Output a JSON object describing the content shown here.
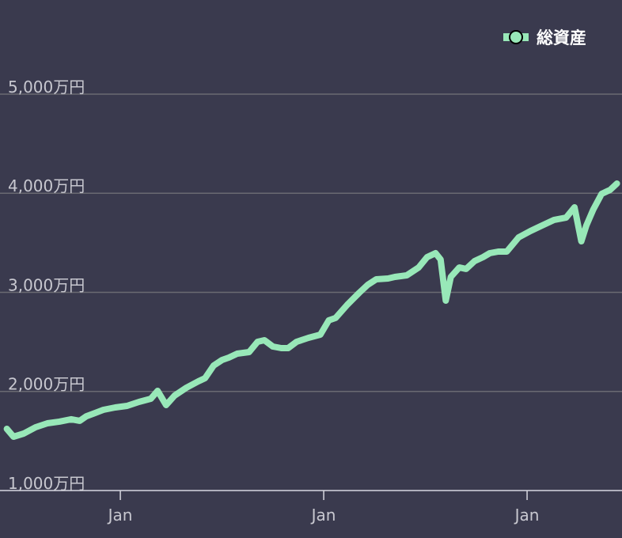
{
  "chart_data": {
    "type": "line",
    "x": [
      5.3,
      5.7,
      6.3,
      7.0,
      7.7,
      8.4,
      9.1,
      9.6,
      10.0,
      10.5,
      11.0,
      11.7,
      12.4,
      13.1,
      13.8,
      14.2,
      14.7,
      15.2,
      15.9,
      16.6,
      17.0,
      17.5,
      18.0,
      18.4,
      18.9,
      19.6,
      20.1,
      20.5,
      21.0,
      21.5,
      21.9,
      22.4,
      23.1,
      23.8,
      24.3,
      24.7,
      25.4,
      26.1,
      26.6,
      27.1,
      27.8,
      28.2,
      28.9,
      29.6,
      30.1,
      30.6,
      30.9,
      31.2,
      31.5,
      32.0,
      32.4,
      32.9,
      33.4,
      33.8,
      34.3,
      34.8,
      35.5,
      36.2,
      36.9,
      37.6,
      38.3,
      38.8,
      39.2,
      39.5,
      39.9,
      40.4,
      40.9,
      41.3
    ],
    "series": [
      {
        "name": "総資産",
        "color": "#98e8b8",
        "values": [
          1623,
          1543,
          1575,
          1639,
          1679,
          1695,
          1719,
          1703,
          1750,
          1782,
          1814,
          1838,
          1854,
          1894,
          1926,
          2006,
          1862,
          1958,
          2038,
          2102,
          2134,
          2261,
          2317,
          2341,
          2381,
          2397,
          2501,
          2517,
          2453,
          2437,
          2437,
          2501,
          2541,
          2573,
          2717,
          2741,
          2876,
          2996,
          3076,
          3132,
          3140,
          3156,
          3172,
          3251,
          3355,
          3395,
          3331,
          2916,
          3156,
          3251,
          3236,
          3315,
          3355,
          3395,
          3411,
          3411,
          3555,
          3619,
          3675,
          3731,
          3754,
          3858,
          3515,
          3675,
          3834,
          3994,
          4034,
          4098
        ]
      }
    ],
    "xlim": [
      4.9,
      41.6
    ],
    "xticks": [
      {
        "value": 12,
        "label": "Jan"
      },
      {
        "value": 24,
        "label": "Jan"
      },
      {
        "value": 36,
        "label": "Jan"
      }
    ],
    "ylim": [
      1000,
      5950
    ],
    "yticks": [
      {
        "value": 1000,
        "label": "1,000万円"
      },
      {
        "value": 2000,
        "label": "2,000万円"
      },
      {
        "value": 3000,
        "label": "3,000万円"
      },
      {
        "value": 4000,
        "label": "4,000万円"
      },
      {
        "value": 5000,
        "label": "5,000万円"
      }
    ],
    "grid": true,
    "legend": "top-right"
  }
}
